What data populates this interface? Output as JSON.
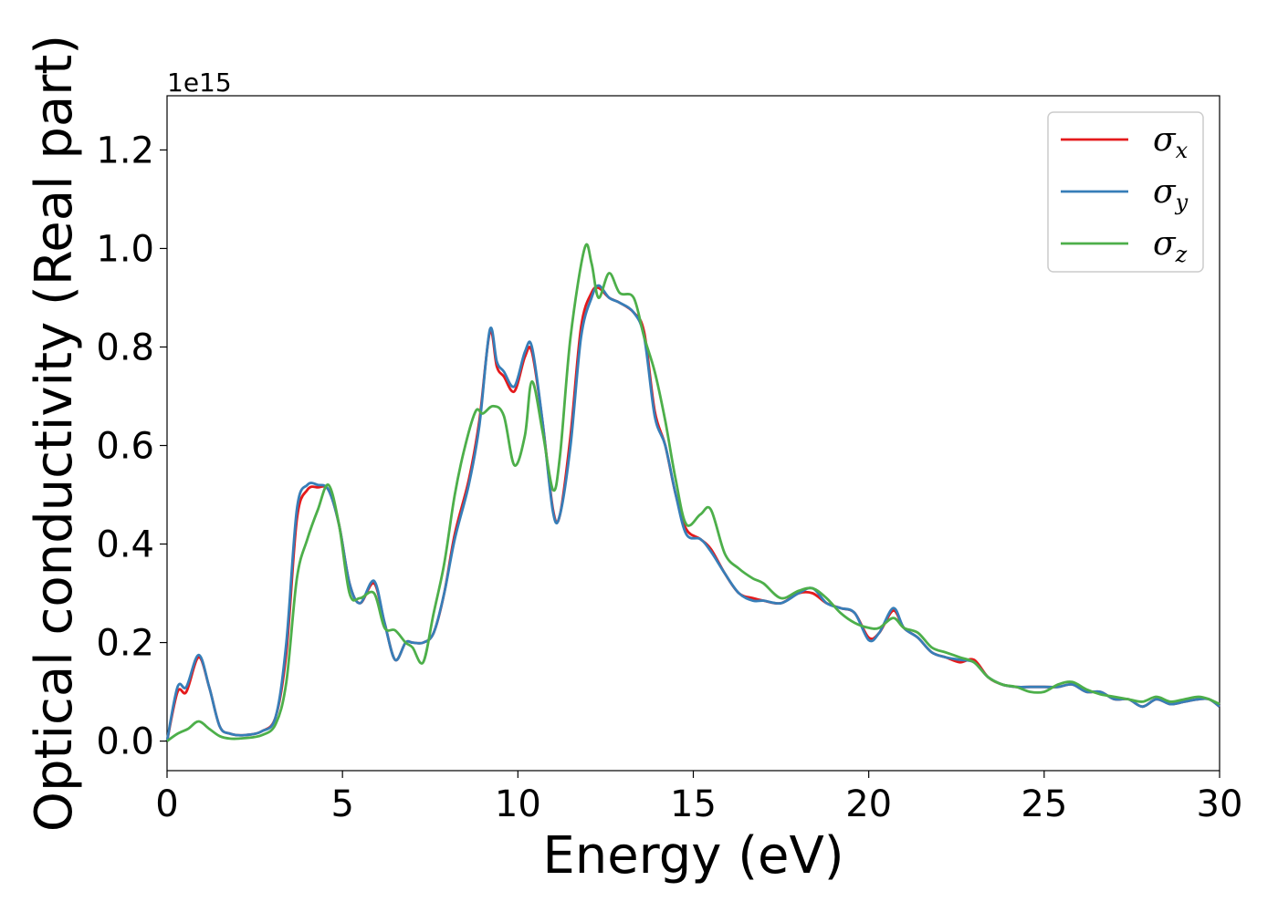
{
  "chart_data": {
    "type": "line",
    "title": "",
    "xlabel": "Energy (eV)",
    "ylabel": "Optical conductivity (Real part)",
    "y_offset_label": "1e15",
    "xlim": [
      0,
      30
    ],
    "ylim": [
      -0.06,
      1.31
    ],
    "xticks": [
      0,
      5,
      10,
      15,
      20,
      25,
      30
    ],
    "yticks": [
      0.0,
      0.2,
      0.4,
      0.6,
      0.8,
      1.0,
      1.2
    ],
    "xtick_labels": [
      "0",
      "5",
      "10",
      "15",
      "20",
      "25",
      "30"
    ],
    "ytick_labels": [
      "0.0",
      "0.2",
      "0.4",
      "0.6",
      "0.8",
      "1.0",
      "1.2"
    ],
    "grid": false,
    "legend_position": "top-right",
    "series": [
      {
        "name": "σ",
        "subscript": "x",
        "color": "#e41a1c",
        "x": [
          0,
          0.3,
          0.55,
          0.9,
          1.2,
          1.5,
          1.8,
          2.2,
          2.7,
          3.1,
          3.4,
          3.7,
          4.0,
          4.3,
          4.6,
          4.9,
          5.2,
          5.5,
          5.9,
          6.2,
          6.5,
          6.8,
          7.0,
          7.3,
          7.6,
          7.9,
          8.2,
          8.6,
          8.9,
          9.2,
          9.4,
          9.6,
          9.9,
          10.2,
          10.4,
          10.7,
          11.0,
          11.2,
          11.5,
          11.8,
          12.1,
          12.3,
          12.6,
          12.9,
          13.3,
          13.6,
          13.9,
          14.2,
          14.5,
          14.8,
          15.2,
          15.5,
          15.9,
          16.3,
          16.7,
          17.0,
          17.5,
          18.0,
          18.4,
          18.8,
          19.2,
          19.6,
          20.0,
          20.3,
          20.7,
          21.0,
          21.4,
          21.8,
          22.2,
          22.6,
          23.0,
          23.4,
          23.8,
          24.2,
          24.6,
          25.0,
          25.4,
          25.8,
          26.2,
          26.6,
          27.0,
          27.4,
          27.8,
          28.2,
          28.6,
          29.0,
          29.4,
          29.7,
          30.0
        ],
        "values": [
          0,
          0.1,
          0.1,
          0.17,
          0.11,
          0.03,
          0.015,
          0.012,
          0.02,
          0.05,
          0.18,
          0.45,
          0.51,
          0.515,
          0.51,
          0.44,
          0.32,
          0.28,
          0.32,
          0.24,
          0.165,
          0.2,
          0.2,
          0.2,
          0.22,
          0.3,
          0.42,
          0.53,
          0.65,
          0.83,
          0.76,
          0.74,
          0.71,
          0.78,
          0.79,
          0.65,
          0.47,
          0.46,
          0.62,
          0.84,
          0.91,
          0.92,
          0.9,
          0.89,
          0.87,
          0.83,
          0.67,
          0.6,
          0.5,
          0.43,
          0.41,
          0.39,
          0.34,
          0.3,
          0.29,
          0.285,
          0.28,
          0.3,
          0.3,
          0.28,
          0.27,
          0.26,
          0.21,
          0.22,
          0.265,
          0.23,
          0.21,
          0.18,
          0.17,
          0.16,
          0.165,
          0.13,
          0.115,
          0.11,
          0.11,
          0.11,
          0.11,
          0.115,
          0.1,
          0.1,
          0.085,
          0.085,
          0.07,
          0.085,
          0.075,
          0.08,
          0.085,
          0.085,
          0.07
        ]
      },
      {
        "name": "σ",
        "subscript": "y",
        "color": "#377eb8",
        "x": [
          0,
          0.3,
          0.55,
          0.9,
          1.2,
          1.5,
          1.8,
          2.2,
          2.7,
          3.1,
          3.4,
          3.7,
          4.0,
          4.3,
          4.6,
          4.9,
          5.2,
          5.5,
          5.9,
          6.2,
          6.5,
          6.8,
          7.0,
          7.3,
          7.6,
          7.9,
          8.2,
          8.6,
          8.9,
          9.2,
          9.4,
          9.6,
          9.9,
          10.2,
          10.4,
          10.7,
          11.0,
          11.2,
          11.5,
          11.8,
          12.1,
          12.3,
          12.6,
          12.9,
          13.3,
          13.6,
          13.9,
          14.2,
          14.5,
          14.8,
          15.2,
          15.5,
          15.9,
          16.3,
          16.7,
          17.0,
          17.5,
          18.0,
          18.4,
          18.8,
          19.2,
          19.6,
          20.0,
          20.3,
          20.7,
          21.0,
          21.4,
          21.8,
          22.2,
          22.6,
          23.0,
          23.4,
          23.8,
          24.2,
          24.6,
          25.0,
          25.4,
          25.8,
          26.2,
          26.6,
          27.0,
          27.4,
          27.8,
          28.2,
          28.6,
          29.0,
          29.4,
          29.7,
          30.0
        ],
        "values": [
          0,
          0.11,
          0.11,
          0.175,
          0.11,
          0.03,
          0.015,
          0.012,
          0.02,
          0.05,
          0.2,
          0.47,
          0.52,
          0.52,
          0.51,
          0.44,
          0.32,
          0.28,
          0.325,
          0.24,
          0.165,
          0.2,
          0.2,
          0.2,
          0.22,
          0.3,
          0.41,
          0.52,
          0.64,
          0.835,
          0.77,
          0.75,
          0.72,
          0.79,
          0.8,
          0.65,
          0.465,
          0.46,
          0.6,
          0.82,
          0.9,
          0.925,
          0.9,
          0.89,
          0.87,
          0.82,
          0.66,
          0.6,
          0.5,
          0.42,
          0.41,
          0.385,
          0.34,
          0.3,
          0.285,
          0.285,
          0.28,
          0.3,
          0.31,
          0.28,
          0.27,
          0.26,
          0.205,
          0.22,
          0.27,
          0.23,
          0.21,
          0.18,
          0.17,
          0.165,
          0.16,
          0.13,
          0.115,
          0.11,
          0.11,
          0.11,
          0.11,
          0.115,
          0.1,
          0.1,
          0.085,
          0.085,
          0.07,
          0.085,
          0.075,
          0.08,
          0.085,
          0.085,
          0.07
        ]
      },
      {
        "name": "σ",
        "subscript": "z",
        "color": "#4daf4a",
        "x": [
          0,
          0.3,
          0.6,
          0.9,
          1.2,
          1.5,
          1.8,
          2.2,
          2.7,
          3.1,
          3.4,
          3.7,
          4.0,
          4.3,
          4.6,
          4.9,
          5.2,
          5.5,
          5.9,
          6.2,
          6.5,
          6.8,
          7.0,
          7.3,
          7.6,
          7.9,
          8.2,
          8.5,
          8.8,
          9.0,
          9.3,
          9.6,
          9.9,
          10.2,
          10.4,
          10.7,
          11.0,
          11.2,
          11.5,
          11.9,
          12.1,
          12.3,
          12.6,
          12.9,
          13.3,
          13.6,
          13.9,
          14.2,
          14.5,
          14.8,
          15.2,
          15.5,
          15.9,
          16.3,
          16.7,
          17.0,
          17.5,
          18.0,
          18.4,
          18.8,
          19.2,
          19.6,
          20.0,
          20.3,
          20.7,
          21.0,
          21.4,
          21.8,
          22.2,
          22.6,
          23.0,
          23.4,
          23.8,
          24.2,
          24.6,
          25.0,
          25.4,
          25.8,
          26.2,
          26.6,
          27.0,
          27.4,
          27.8,
          28.2,
          28.6,
          29.0,
          29.4,
          29.7,
          30.0
        ],
        "values": [
          0,
          0.015,
          0.025,
          0.04,
          0.025,
          0.01,
          0.005,
          0.006,
          0.012,
          0.035,
          0.12,
          0.33,
          0.41,
          0.47,
          0.52,
          0.44,
          0.3,
          0.29,
          0.3,
          0.23,
          0.225,
          0.2,
          0.19,
          0.16,
          0.26,
          0.36,
          0.5,
          0.6,
          0.67,
          0.665,
          0.68,
          0.66,
          0.56,
          0.62,
          0.73,
          0.63,
          0.51,
          0.58,
          0.82,
          1.0,
          0.97,
          0.9,
          0.95,
          0.91,
          0.9,
          0.82,
          0.75,
          0.65,
          0.53,
          0.44,
          0.46,
          0.47,
          0.38,
          0.35,
          0.33,
          0.32,
          0.29,
          0.305,
          0.31,
          0.29,
          0.26,
          0.24,
          0.23,
          0.23,
          0.25,
          0.23,
          0.22,
          0.19,
          0.18,
          0.17,
          0.16,
          0.13,
          0.115,
          0.11,
          0.1,
          0.1,
          0.115,
          0.12,
          0.105,
          0.095,
          0.09,
          0.085,
          0.08,
          0.09,
          0.08,
          0.085,
          0.09,
          0.085,
          0.075
        ]
      }
    ]
  }
}
